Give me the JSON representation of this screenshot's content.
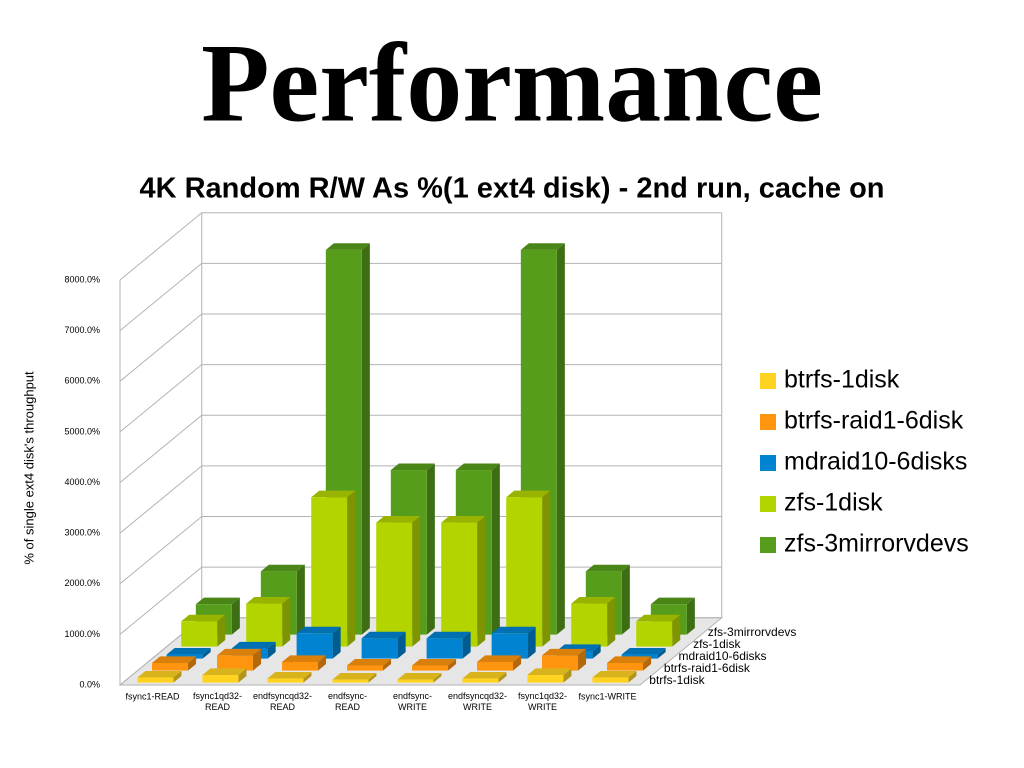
{
  "chart_data": {
    "type": "bar3d",
    "heading": "Performance",
    "title": "4K Random R/W As %(1 ext4 disk) - 2nd run, cache on",
    "ylabel": "% of single ext4 disk's throughput",
    "categories": [
      "fsync1-READ",
      "fsync1qd32-READ",
      "endfsyncqd32-READ",
      "endfsync-READ",
      "endfsync-WRITE",
      "endfsyncqd32-WRITE",
      "fsync1qd32-WRITE",
      "fsync1-WRITE"
    ],
    "series": [
      {
        "name": "btrfs-1disk",
        "color": "#ffd320",
        "values": [
          100,
          150,
          80,
          60,
          60,
          80,
          150,
          100
        ]
      },
      {
        "name": "btrfs-raid1-6disk",
        "color": "#ff950e",
        "values": [
          150,
          300,
          170,
          100,
          100,
          170,
          300,
          150
        ]
      },
      {
        "name": "mdraid10-6disks",
        "color": "#0084d1",
        "values": [
          80,
          200,
          500,
          400,
          400,
          500,
          150,
          80
        ]
      },
      {
        "name": "zfs-1disk",
        "color": "#b4d400",
        "values": [
          500,
          850,
          2950,
          2450,
          2450,
          2950,
          850,
          500
        ]
      },
      {
        "name": "zfs-3mirrorvdevs",
        "color": "#579d1c",
        "values": [
          600,
          1250,
          7600,
          3250,
          3250,
          7600,
          1250,
          600
        ]
      }
    ],
    "ylim": [
      0,
      8000
    ],
    "yticks": [
      {
        "value": 0,
        "label": "0.0%"
      },
      {
        "value": 1000,
        "label": "1000.0%"
      },
      {
        "value": 2000,
        "label": "2000.0%"
      },
      {
        "value": 3000,
        "label": "3000.0%"
      },
      {
        "value": 4000,
        "label": "4000.0%"
      },
      {
        "value": 5000,
        "label": "5000.0%"
      },
      {
        "value": 6000,
        "label": "6000.0%"
      },
      {
        "value": 7000,
        "label": "7000.0%"
      },
      {
        "value": 8000,
        "label": "8000.0%"
      }
    ],
    "grid": true
  }
}
